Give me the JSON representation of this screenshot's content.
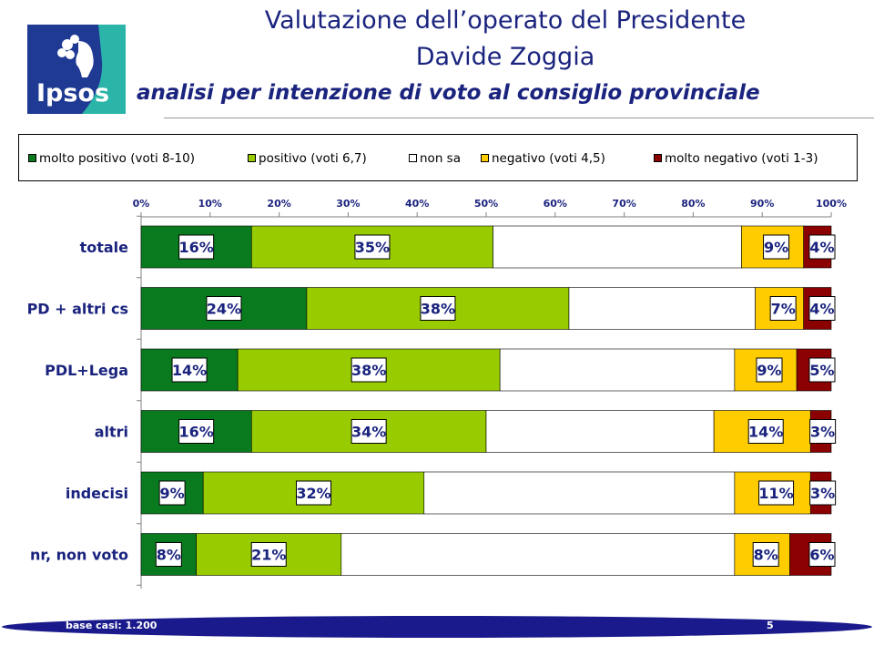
{
  "header": {
    "title_line1": "Valutazione dell’operato del Presidente",
    "title_line2": "Davide Zoggia",
    "subtitle": "analisi per intenzione di voto al consiglio provinciale"
  },
  "logo": {
    "text": "Ipsos"
  },
  "colors": {
    "molto_positivo": "#0a7a1e",
    "positivo": "#99cc00",
    "non_sa": "#ffffff",
    "negativo": "#ffcc00",
    "molto_negativo": "#8b0000",
    "title": "#1a237e",
    "footer_band": "#1a1a8c"
  },
  "footer": {
    "base_label": "base casi: 1.200",
    "page_number": "5"
  },
  "chart_data": {
    "type": "bar",
    "orientation": "horizontal-stacked-100",
    "categories": [
      "totale",
      "PD + altri cs",
      "PDL+Lega",
      "altri",
      "indecisi",
      "nr, non voto"
    ],
    "series": [
      {
        "name": "molto positivo (voti 8-10)",
        "values": [
          16,
          24,
          14,
          16,
          9,
          8
        ],
        "labels": [
          "16%",
          "24%",
          "14%",
          "16%",
          "9%",
          "8%"
        ]
      },
      {
        "name": "positivo (voti 6,7)",
        "values": [
          35,
          38,
          38,
          34,
          32,
          21
        ],
        "labels": [
          "35%",
          "38%",
          "38%",
          "34%",
          "32%",
          "21%"
        ]
      },
      {
        "name": "non sa",
        "values": [
          36,
          27,
          34,
          33,
          45,
          57
        ],
        "labels": [
          "",
          "",
          "",
          "",
          "",
          ""
        ]
      },
      {
        "name": "negativo (voti 4,5)",
        "values": [
          9,
          7,
          9,
          14,
          11,
          8
        ],
        "labels": [
          "9%",
          "7%",
          "9%",
          "14%",
          "11%",
          "8%"
        ]
      },
      {
        "name": "molto negativo (voti 1-3)",
        "values": [
          4,
          4,
          5,
          3,
          3,
          6
        ],
        "labels": [
          "4%",
          "4%",
          "5%",
          "3%",
          "3%",
          "6%"
        ]
      }
    ],
    "xlim": [
      0,
      100
    ],
    "x_ticks": [
      "0%",
      "10%",
      "20%",
      "30%",
      "40%",
      "50%",
      "60%",
      "70%",
      "80%",
      "90%",
      "100%"
    ],
    "legend_position": "top",
    "grid": false
  }
}
